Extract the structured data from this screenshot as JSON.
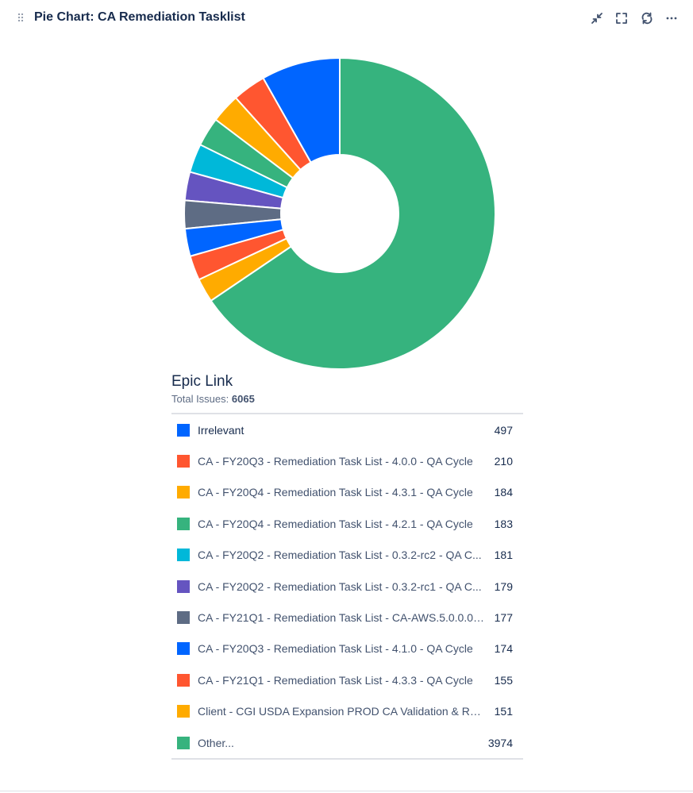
{
  "header": {
    "title": "Pie Chart: CA Remediation Tasklist",
    "icons": [
      "drag-handle-icon",
      "minimize-icon",
      "fullscreen-icon",
      "refresh-icon",
      "more-icon"
    ]
  },
  "colors": {
    "blue": "#0065ff",
    "red": "#ff5630",
    "yellow": "#ffab00",
    "green": "#36b37e",
    "teal": "#00b8d9",
    "purple": "#6554c0",
    "slate": "#5e6c84"
  },
  "legend": {
    "title": "Epic Link",
    "total_label": "Total Issues:",
    "total_value": "6065"
  },
  "chart_data": {
    "type": "pie",
    "variant": "donut",
    "title": "Pie Chart: CA Remediation Tasklist",
    "total": 6065,
    "slices": [
      {
        "label": "Irrelevant",
        "value": 497,
        "color": "#0065ff"
      },
      {
        "label": "CA - FY20Q3 - Remediation Task List - 4.0.0 - QA Cycle",
        "value": 210,
        "color": "#ff5630"
      },
      {
        "label": "CA - FY20Q4 - Remediation Task List - 4.3.1 - QA Cycle",
        "value": 184,
        "color": "#ffab00"
      },
      {
        "label": "CA - FY20Q4 - Remediation Task List - 4.2.1 - QA Cycle",
        "value": 183,
        "color": "#36b37e"
      },
      {
        "label": "CA - FY20Q2 - Remediation Task List - 0.3.2-rc2 - QA C...",
        "value": 181,
        "color": "#00b8d9"
      },
      {
        "label": "CA - FY20Q2 - Remediation Task List - 0.3.2-rc1 - QA C...",
        "value": 179,
        "color": "#6554c0"
      },
      {
        "label": "CA - FY21Q1 - Remediation Task List - CA-AWS.5.0.0.0 -...",
        "value": 177,
        "color": "#5e6c84"
      },
      {
        "label": "CA - FY20Q3 - Remediation Task List - 4.1.0 - QA Cycle",
        "value": 174,
        "color": "#0065ff"
      },
      {
        "label": "CA - FY21Q1 - Remediation Task List - 4.3.3 - QA Cycle",
        "value": 155,
        "color": "#ff5630"
      },
      {
        "label": "Client - CGI USDA Expansion PROD CA Validation & Rem...",
        "value": 151,
        "color": "#ffab00"
      },
      {
        "label": "Other...",
        "value": 3974,
        "color": "#36b37e"
      }
    ]
  }
}
